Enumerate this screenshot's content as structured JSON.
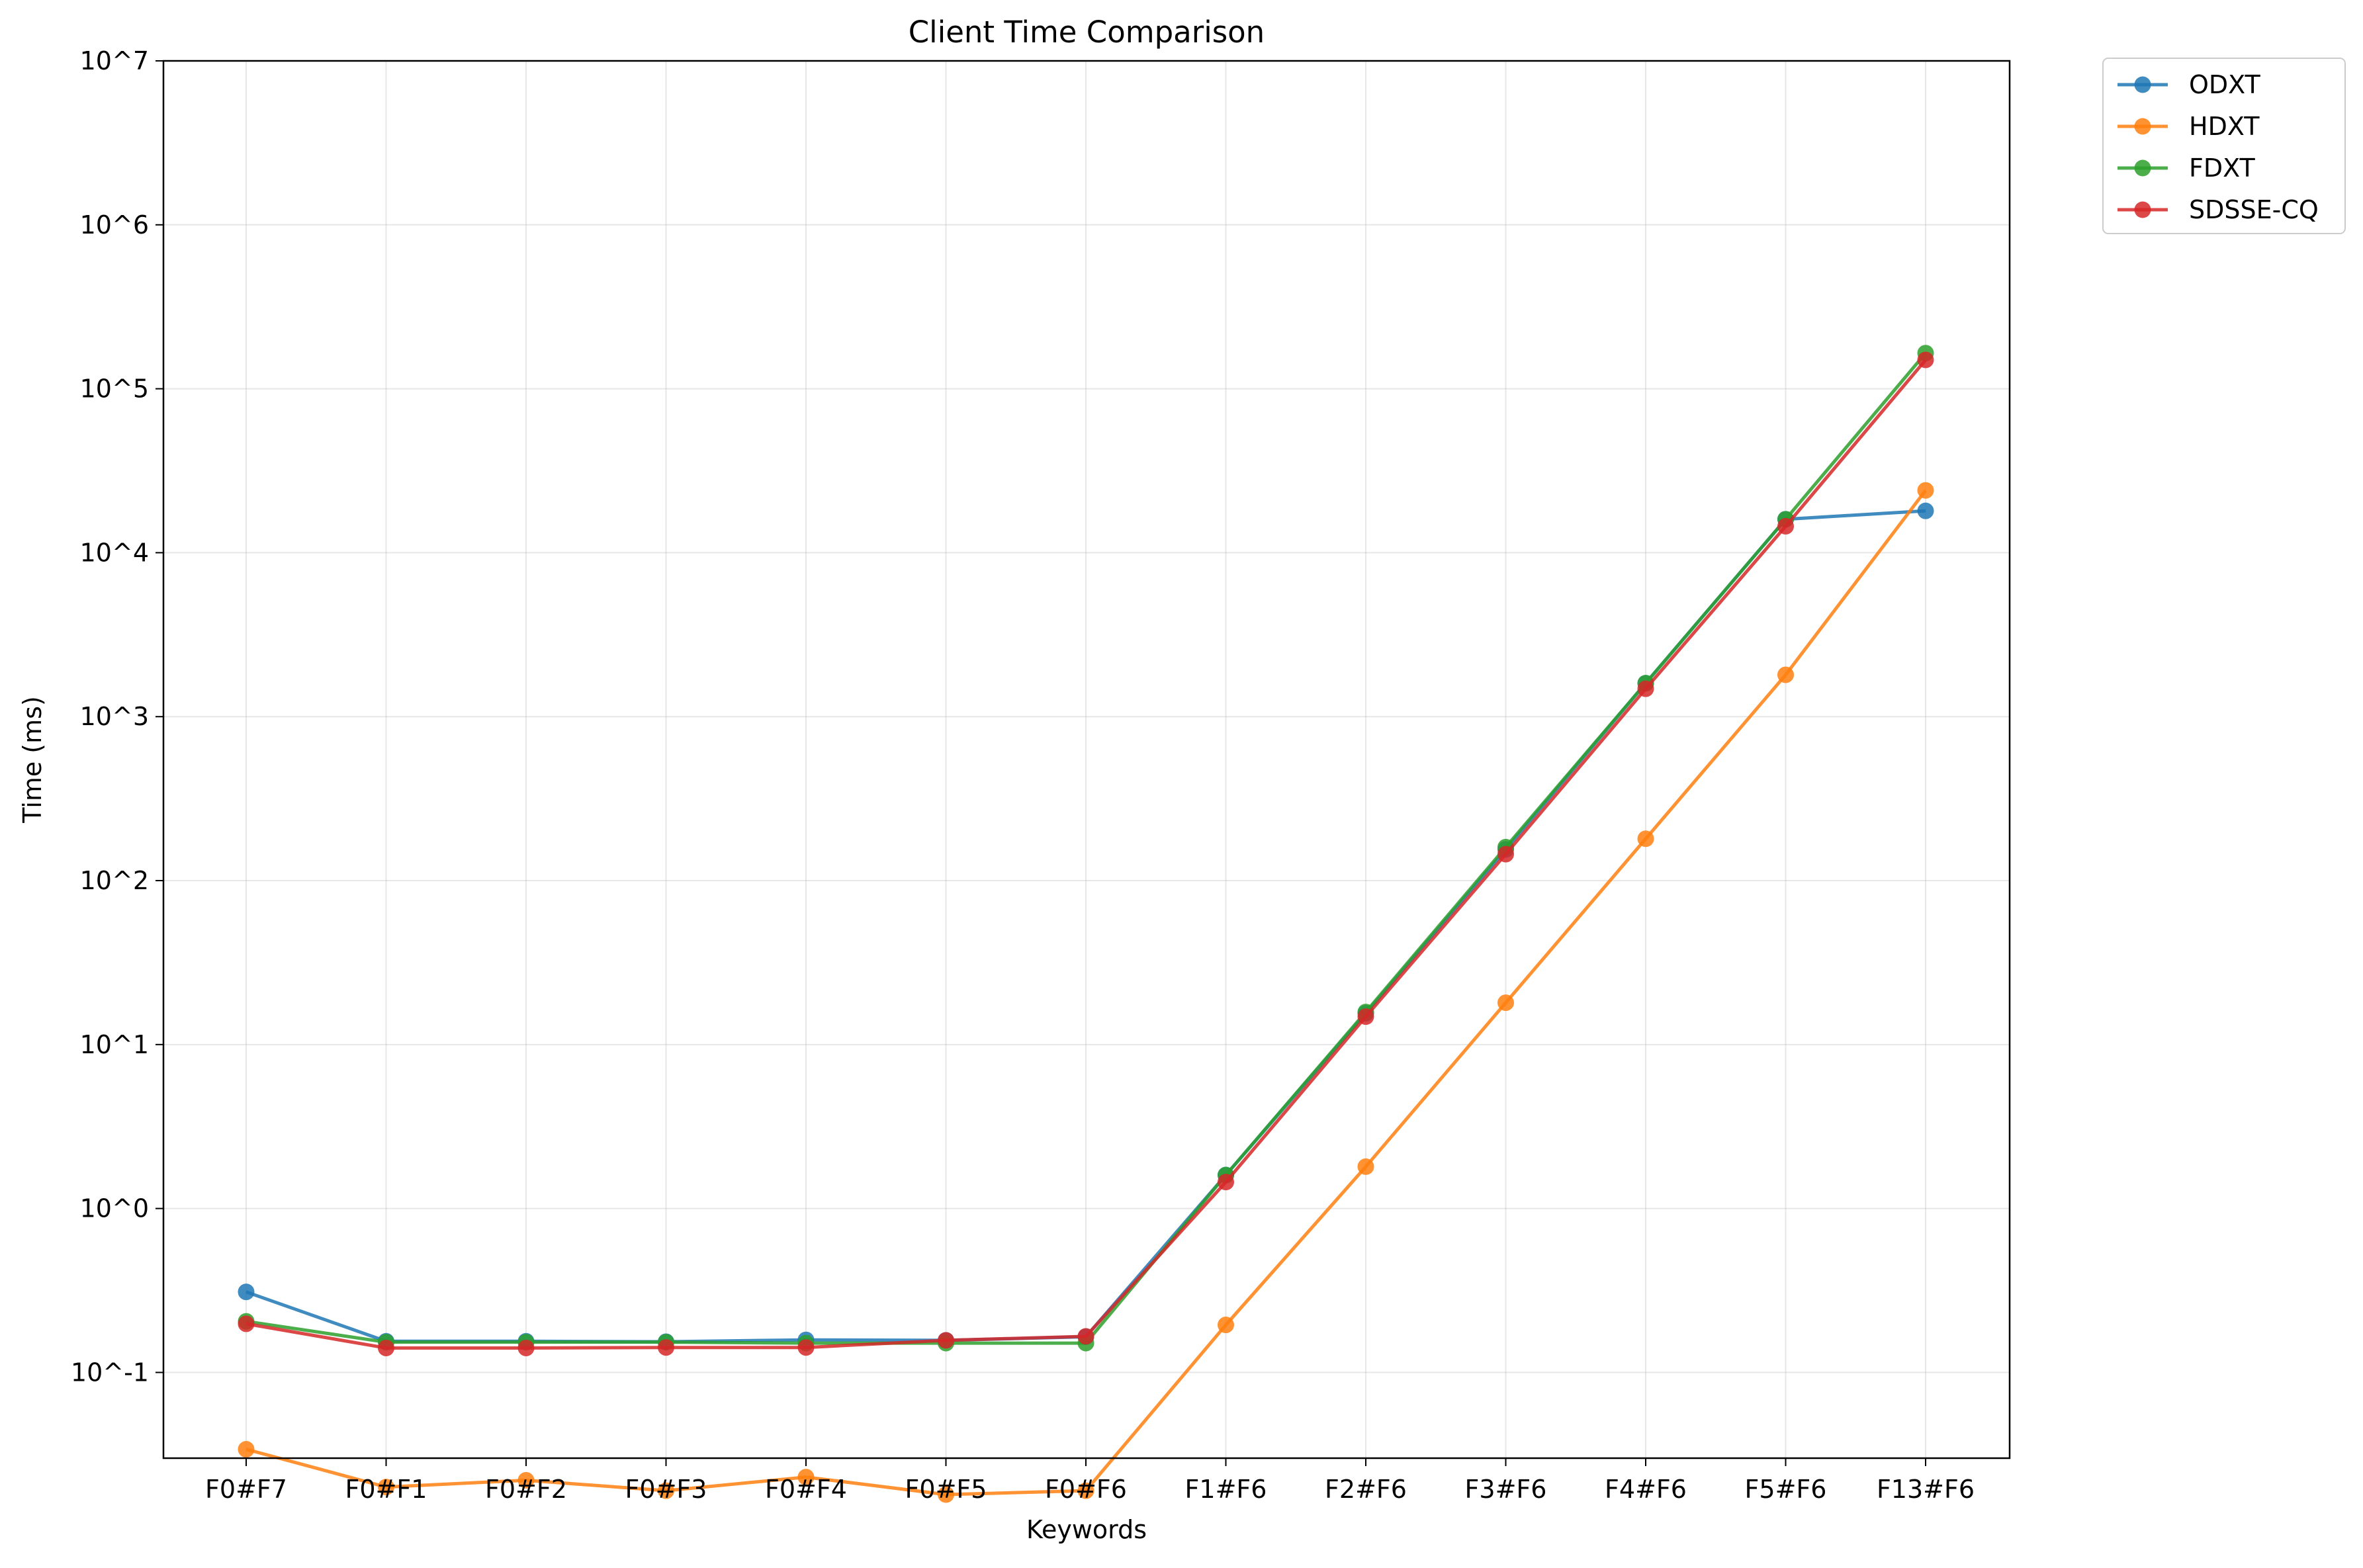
{
  "chart_data": {
    "type": "line",
    "title": "Client Time Comparison",
    "xlabel": "Keywords",
    "ylabel": "Time (ms)",
    "yscale": "log",
    "ylim": [
      0.03,
      10000000
    ],
    "grid": true,
    "legend_position": "outside-top-right",
    "categories": [
      "F0#F7",
      "F0#F1",
      "F0#F2",
      "F0#F3",
      "F0#F4",
      "F0#F5",
      "F0#F6",
      "F1#F6",
      "F2#F6",
      "F3#F6",
      "F4#F6",
      "F5#F6",
      "F13#F6"
    ],
    "y_tick_labels": [
      "10^-1",
      "10^0",
      "10^1",
      "10^2",
      "10^3",
      "10^4",
      "10^5",
      "10^6",
      "10^7"
    ],
    "y_tick_values": [
      0.1,
      1,
      10,
      100,
      1000,
      10000,
      100000,
      1000000,
      10000000
    ],
    "series": [
      {
        "name": "ODXT",
        "color": "#1f77b4",
        "values": [
          0.31,
          0.155,
          0.155,
          0.154,
          0.158,
          0.157,
          0.165,
          1.6,
          15.5,
          155,
          1600,
          16000,
          18000
        ]
      },
      {
        "name": "HDXT",
        "color": "#ff7f0e",
        "values": [
          0.034,
          0.02,
          0.022,
          0.019,
          0.023,
          0.018,
          0.019,
          0.195,
          1.8,
          18,
          180,
          1800,
          24000
        ]
      },
      {
        "name": "FDXT",
        "color": "#2ca02c",
        "values": [
          0.205,
          0.153,
          0.153,
          0.153,
          0.151,
          0.151,
          0.151,
          1.6,
          15.8,
          160,
          1600,
          16000,
          165000
        ]
      },
      {
        "name": "SDSSE-CQ",
        "color": "#d62728",
        "values": [
          0.198,
          0.141,
          0.141,
          0.142,
          0.142,
          0.157,
          0.166,
          1.45,
          14.8,
          145,
          1480,
          14500,
          150000
        ]
      }
    ]
  }
}
